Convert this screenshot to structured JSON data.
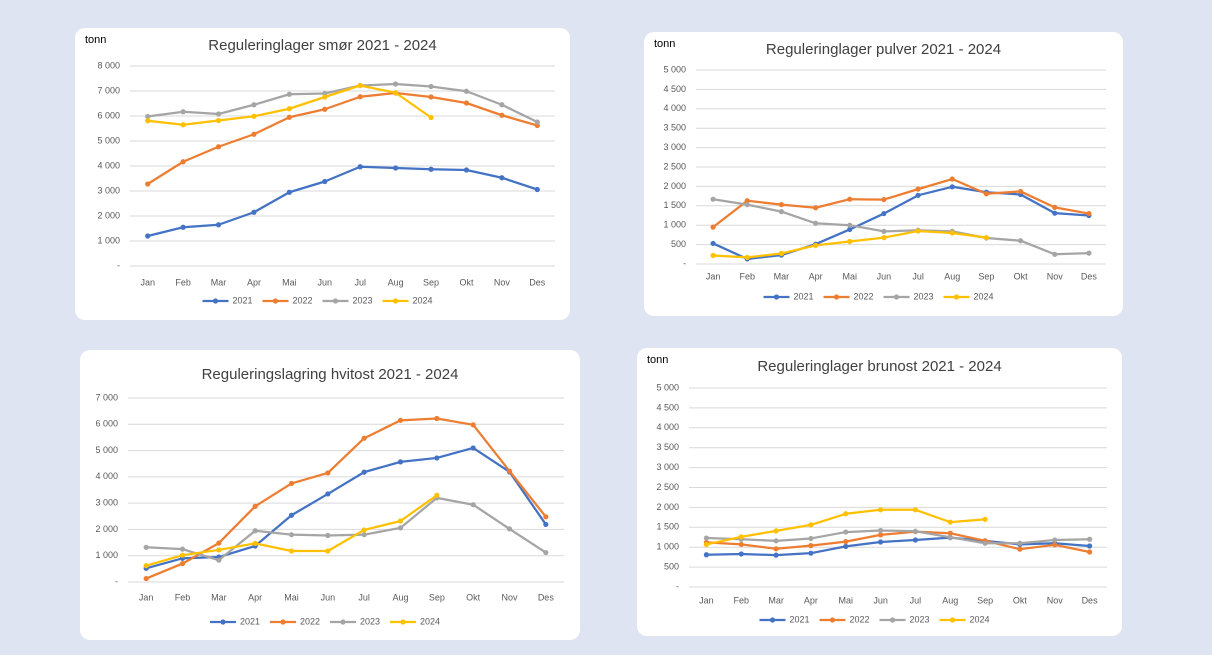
{
  "chart_data": [
    {
      "type": "line",
      "title": "Reguleringlager smør 2021 - 2024",
      "y_label": "tonn",
      "categories": [
        "Jan",
        "Feb",
        "Mar",
        "Apr",
        "Mai",
        "Jun",
        "Jul",
        "Aug",
        "Sep",
        "Okt",
        "Nov",
        "Des"
      ],
      "ylim": [
        0,
        8000
      ],
      "yticks": [
        {
          "value": 0,
          "label": "-"
        },
        {
          "value": 1000,
          "label": "1 000"
        },
        {
          "value": 2000,
          "label": "2 000"
        },
        {
          "value": 3000,
          "label": "3 000"
        },
        {
          "value": 4000,
          "label": "4 000"
        },
        {
          "value": 5000,
          "label": "5 000"
        },
        {
          "value": 6000,
          "label": "6 000"
        },
        {
          "value": 7000,
          "label": "7 000"
        },
        {
          "value": 8000,
          "label": "8 000"
        }
      ],
      "grid": true,
      "series": [
        {
          "name": "2021",
          "color": "#4472c4",
          "values": [
            1200,
            1550,
            1650,
            2150,
            2950,
            3380,
            3970,
            3920,
            3870,
            3840,
            3530,
            3060
          ]
        },
        {
          "name": "2022",
          "color": "#ed7d31",
          "values": [
            3280,
            4170,
            4770,
            5270,
            5950,
            6270,
            6770,
            6920,
            6760,
            6520,
            6030,
            5620
          ]
        },
        {
          "name": "2023",
          "color": "#a5a5a5",
          "values": [
            5980,
            6170,
            6080,
            6450,
            6870,
            6900,
            7220,
            7280,
            7180,
            6990,
            6450,
            5760
          ]
        },
        {
          "name": "2024",
          "color": "#ffc000",
          "values": [
            5810,
            5650,
            5820,
            5990,
            6290,
            6760,
            7220,
            6930,
            5940,
            null,
            null,
            null
          ]
        }
      ]
    },
    {
      "type": "line",
      "title": "Reguleringlager pulver 2021 - 2024",
      "y_label": "tonn",
      "categories": [
        "Jan",
        "Feb",
        "Mar",
        "Apr",
        "Mai",
        "Jun",
        "Jul",
        "Aug",
        "Sep",
        "Okt",
        "Nov",
        "Des"
      ],
      "ylim": [
        0,
        5000
      ],
      "yticks": [
        {
          "value": 0,
          "label": "-"
        },
        500,
        {
          "value": 1000,
          "label": "1 000"
        },
        {
          "value": 1500,
          "label": "1 500"
        },
        {
          "value": 2000,
          "label": "2 000"
        },
        {
          "value": 2500,
          "label": "2 500"
        },
        {
          "value": 3000,
          "label": "3 000"
        },
        {
          "value": 3500,
          "label": "3 500"
        },
        {
          "value": 4000,
          "label": "4 000"
        },
        {
          "value": 4500,
          "label": "4 500"
        },
        {
          "value": 5000,
          "label": "5 000"
        }
      ],
      "grid": true,
      "series": [
        {
          "name": "2021",
          "color": "#4472c4",
          "values": [
            530,
            130,
            230,
            510,
            890,
            1300,
            1770,
            1990,
            1850,
            1790,
            1310,
            1250
          ]
        },
        {
          "name": "2022",
          "color": "#ed7d31",
          "values": [
            950,
            1630,
            1530,
            1450,
            1670,
            1660,
            1930,
            2190,
            1810,
            1870,
            1460,
            1300
          ]
        },
        {
          "name": "2023",
          "color": "#a5a5a5",
          "values": [
            1670,
            1530,
            1350,
            1050,
            1000,
            840,
            870,
            840,
            670,
            600,
            250,
            280
          ]
        },
        {
          "name": "2024",
          "color": "#ffc000",
          "values": [
            220,
            170,
            270,
            480,
            580,
            680,
            850,
            800,
            680,
            null,
            null,
            null
          ]
        }
      ]
    },
    {
      "type": "line",
      "title": "Reguleringslagring hvitost 2021 - 2024",
      "categories": [
        "Jan",
        "Feb",
        "Mar",
        "Apr",
        "Mai",
        "Jun",
        "Jul",
        "Aug",
        "Sep",
        "Okt",
        "Nov",
        "Des"
      ],
      "ylim": [
        0,
        7000
      ],
      "yticks": [
        {
          "value": 0,
          "label": "-"
        },
        {
          "value": 1000,
          "label": "1 000"
        },
        {
          "value": 2000,
          "label": "2 000"
        },
        {
          "value": 3000,
          "label": "3 000"
        },
        {
          "value": 4000,
          "label": "4 000"
        },
        {
          "value": 5000,
          "label": "5 000"
        },
        {
          "value": 6000,
          "label": "6 000"
        },
        {
          "value": 7000,
          "label": "7 000"
        }
      ],
      "grid": true,
      "series": [
        {
          "name": "2021",
          "color": "#4472c4",
          "values": [
            520,
            900,
            950,
            1370,
            2540,
            3350,
            4180,
            4570,
            4720,
            5100,
            4190,
            2190
          ]
        },
        {
          "name": "2022",
          "color": "#ed7d31",
          "values": [
            130,
            700,
            1480,
            2880,
            3750,
            4150,
            5470,
            6150,
            6220,
            5980,
            4220,
            2480
          ]
        },
        {
          "name": "2023",
          "color": "#a5a5a5",
          "values": [
            1320,
            1250,
            830,
            1950,
            1800,
            1770,
            1800,
            2060,
            3200,
            2940,
            2020,
            1120
          ]
        },
        {
          "name": "2024",
          "color": "#ffc000",
          "values": [
            620,
            1020,
            1220,
            1470,
            1180,
            1180,
            1980,
            2320,
            3300,
            null,
            null,
            null
          ]
        }
      ]
    },
    {
      "type": "line",
      "title": "Reguleringlager brunost 2021 - 2024",
      "y_label": "tonn",
      "categories": [
        "Jan",
        "Feb",
        "Mar",
        "Apr",
        "Mai",
        "Jun",
        "Jul",
        "Aug",
        "Sep",
        "Okt",
        "Nov",
        "Des"
      ],
      "ylim": [
        0,
        5000
      ],
      "yticks": [
        {
          "value": 0,
          "label": "-"
        },
        500,
        {
          "value": 1000,
          "label": "1 000"
        },
        {
          "value": 1500,
          "label": "1 500"
        },
        {
          "value": 2000,
          "label": "2 000"
        },
        {
          "value": 2500,
          "label": "2 500"
        },
        {
          "value": 3000,
          "label": "3 000"
        },
        {
          "value": 3500,
          "label": "3 500"
        },
        {
          "value": 4000,
          "label": "4 000"
        },
        {
          "value": 4500,
          "label": "4 500"
        },
        {
          "value": 5000,
          "label": "5 000"
        }
      ],
      "grid": true,
      "series": [
        {
          "name": "2021",
          "color": "#4472c4",
          "values": [
            810,
            830,
            800,
            850,
            1020,
            1130,
            1180,
            1240,
            1160,
            1070,
            1100,
            1030
          ]
        },
        {
          "name": "2022",
          "color": "#ed7d31",
          "values": [
            1120,
            1070,
            960,
            1040,
            1140,
            1310,
            1390,
            1350,
            1160,
            950,
            1060,
            880
          ]
        },
        {
          "name": "2023",
          "color": "#a5a5a5",
          "values": [
            1230,
            1200,
            1160,
            1220,
            1380,
            1420,
            1400,
            1250,
            1100,
            1100,
            1180,
            1200
          ]
        },
        {
          "name": "2024",
          "color": "#ffc000",
          "values": [
            1070,
            1260,
            1410,
            1560,
            1840,
            1940,
            1940,
            1630,
            1700,
            null,
            null,
            null
          ]
        }
      ]
    }
  ]
}
